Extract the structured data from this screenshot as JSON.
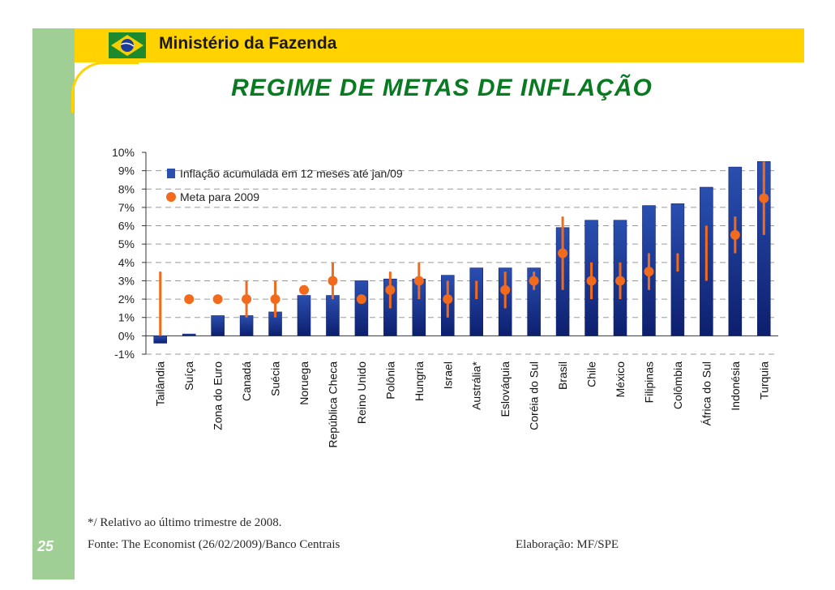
{
  "header": {
    "ministry": "Ministério da Fazenda"
  },
  "title": "REGIME DE METAS DE INFLAÇÃO",
  "colors": {
    "bar": "#2a4fb0",
    "bar_dark": "#0d1f6e",
    "target": "#f26b1d",
    "band": "#9fcf94",
    "header_bar": "#ffd200",
    "title": "#0a7a22"
  },
  "chart_data": {
    "type": "bar",
    "categories": [
      "Tailândia",
      "Suíça",
      "Zona do Euro",
      "Canadá",
      "Suécia",
      "Noruega",
      "República Checa",
      "Reino Unido",
      "Polônia",
      "Hungria",
      "Israel",
      "Austrália*",
      "Eslováquia",
      "Coréia do Sul",
      "Brasil",
      "Chile",
      "México",
      "Filipinas",
      "Colômbia",
      "África do Sul",
      "Indonésia",
      "Turquia"
    ],
    "series": [
      {
        "name": "Inflação acumulada em 12 meses até jan/09",
        "type": "bar",
        "values": [
          -0.4,
          0.1,
          1.1,
          1.1,
          1.3,
          2.2,
          2.2,
          3.0,
          3.1,
          3.1,
          3.3,
          3.7,
          3.7,
          3.7,
          5.9,
          6.3,
          6.3,
          7.1,
          7.2,
          8.1,
          9.2,
          9.5
        ]
      },
      {
        "name": "Meta para 2009",
        "type": "point",
        "values": [
          null,
          2.0,
          2.0,
          2.0,
          2.0,
          2.5,
          3.0,
          2.0,
          2.5,
          3.0,
          2.0,
          null,
          2.5,
          3.0,
          4.5,
          3.0,
          3.0,
          3.5,
          null,
          null,
          5.5,
          7.5
        ]
      }
    ],
    "target_ranges": [
      [
        0.0,
        3.5
      ],
      null,
      null,
      [
        1.0,
        3.0
      ],
      [
        1.0,
        3.0
      ],
      null,
      [
        2.0,
        4.0
      ],
      null,
      [
        1.5,
        3.5
      ],
      [
        2.0,
        4.0
      ],
      [
        1.0,
        3.0
      ],
      [
        2.0,
        3.0
      ],
      [
        1.5,
        3.5
      ],
      [
        2.5,
        3.5
      ],
      [
        2.5,
        6.5
      ],
      [
        2.0,
        4.0
      ],
      [
        2.0,
        4.0
      ],
      [
        2.5,
        4.5
      ],
      [
        3.5,
        4.5
      ],
      [
        3.0,
        6.0
      ],
      [
        4.5,
        6.5
      ],
      [
        5.5,
        9.5
      ]
    ],
    "y_ticks": [
      "10%",
      "9%",
      "8%",
      "7%",
      "6%",
      "5%",
      "4%",
      "3%",
      "2%",
      "1%",
      "0%",
      "-1%"
    ],
    "ylim": [
      -1,
      10
    ],
    "legend_position": "top-left",
    "grid": true
  },
  "footer": {
    "note": "*/ Relativo ao último trimestre de 2008.",
    "source": "Fonte: The Economist (26/02/2009)/Banco Centrais",
    "credit": "Elaboração: MF/SPE",
    "page": "25"
  }
}
